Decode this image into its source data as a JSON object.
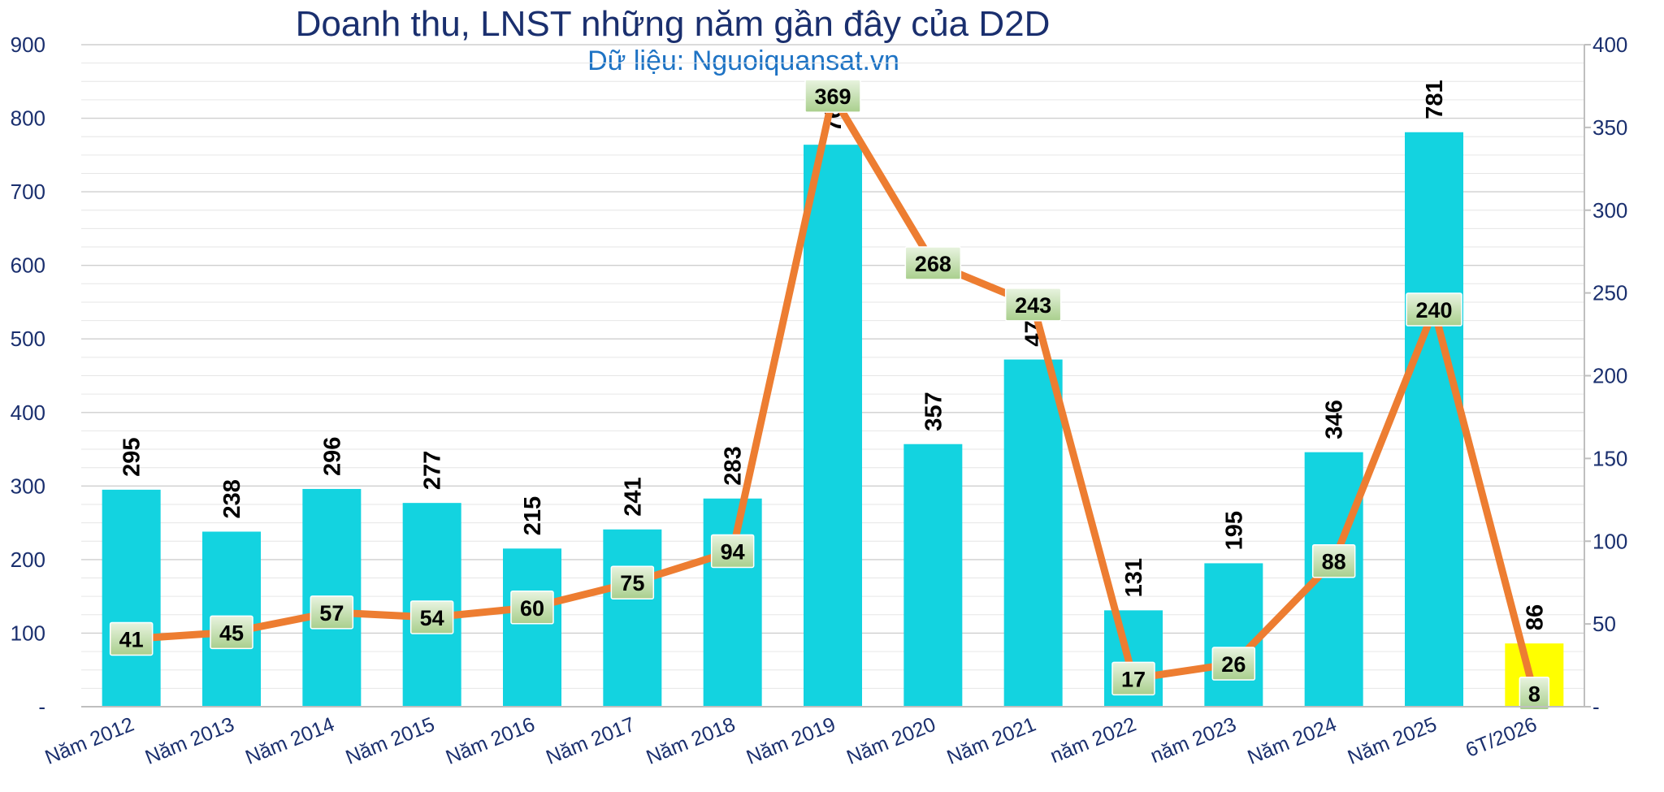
{
  "chart_data": {
    "type": "bar",
    "title": "Doanh thu, LNST những năm gần đây của D2D",
    "subtitle": "Dữ liệu: Nguoiquansat.vn",
    "categories": [
      "Năm 2012",
      "Năm 2013",
      "Năm 2014",
      "Năm 2015",
      "Năm 2016",
      "Năm 2017",
      "Năm 2018",
      "Năm 2019",
      "Năm 2020",
      "Năm 2021",
      "năm 2022",
      "năm 2023",
      "Năm 2024",
      "Năm 2025",
      "6T/2026"
    ],
    "series": [
      {
        "type": "bar",
        "axis": "left",
        "values": [
          295,
          238,
          296,
          277,
          215,
          241,
          283,
          764,
          357,
          472,
          131,
          195,
          346,
          781,
          86
        ],
        "color": "#13d3e0",
        "highlight_color": "#ffff00",
        "highlight_category": "6T/2026"
      },
      {
        "type": "line",
        "axis": "right",
        "values": [
          41,
          45,
          57,
          54,
          60,
          75,
          94,
          369,
          268,
          243,
          17,
          26,
          88,
          240,
          8
        ],
        "color": "#ed7d31"
      }
    ],
    "y_left": {
      "min": 0,
      "max": 900,
      "step": 100,
      "ticks": [
        "-",
        "100",
        "200",
        "300",
        "400",
        "500",
        "600",
        "700",
        "800",
        "900"
      ]
    },
    "y_right": {
      "min": 0,
      "max": 400,
      "step": 50,
      "ticks": [
        "-",
        "50",
        "100",
        "150",
        "200",
        "250",
        "300",
        "350",
        "400"
      ]
    },
    "grid": true,
    "legend": "none"
  }
}
